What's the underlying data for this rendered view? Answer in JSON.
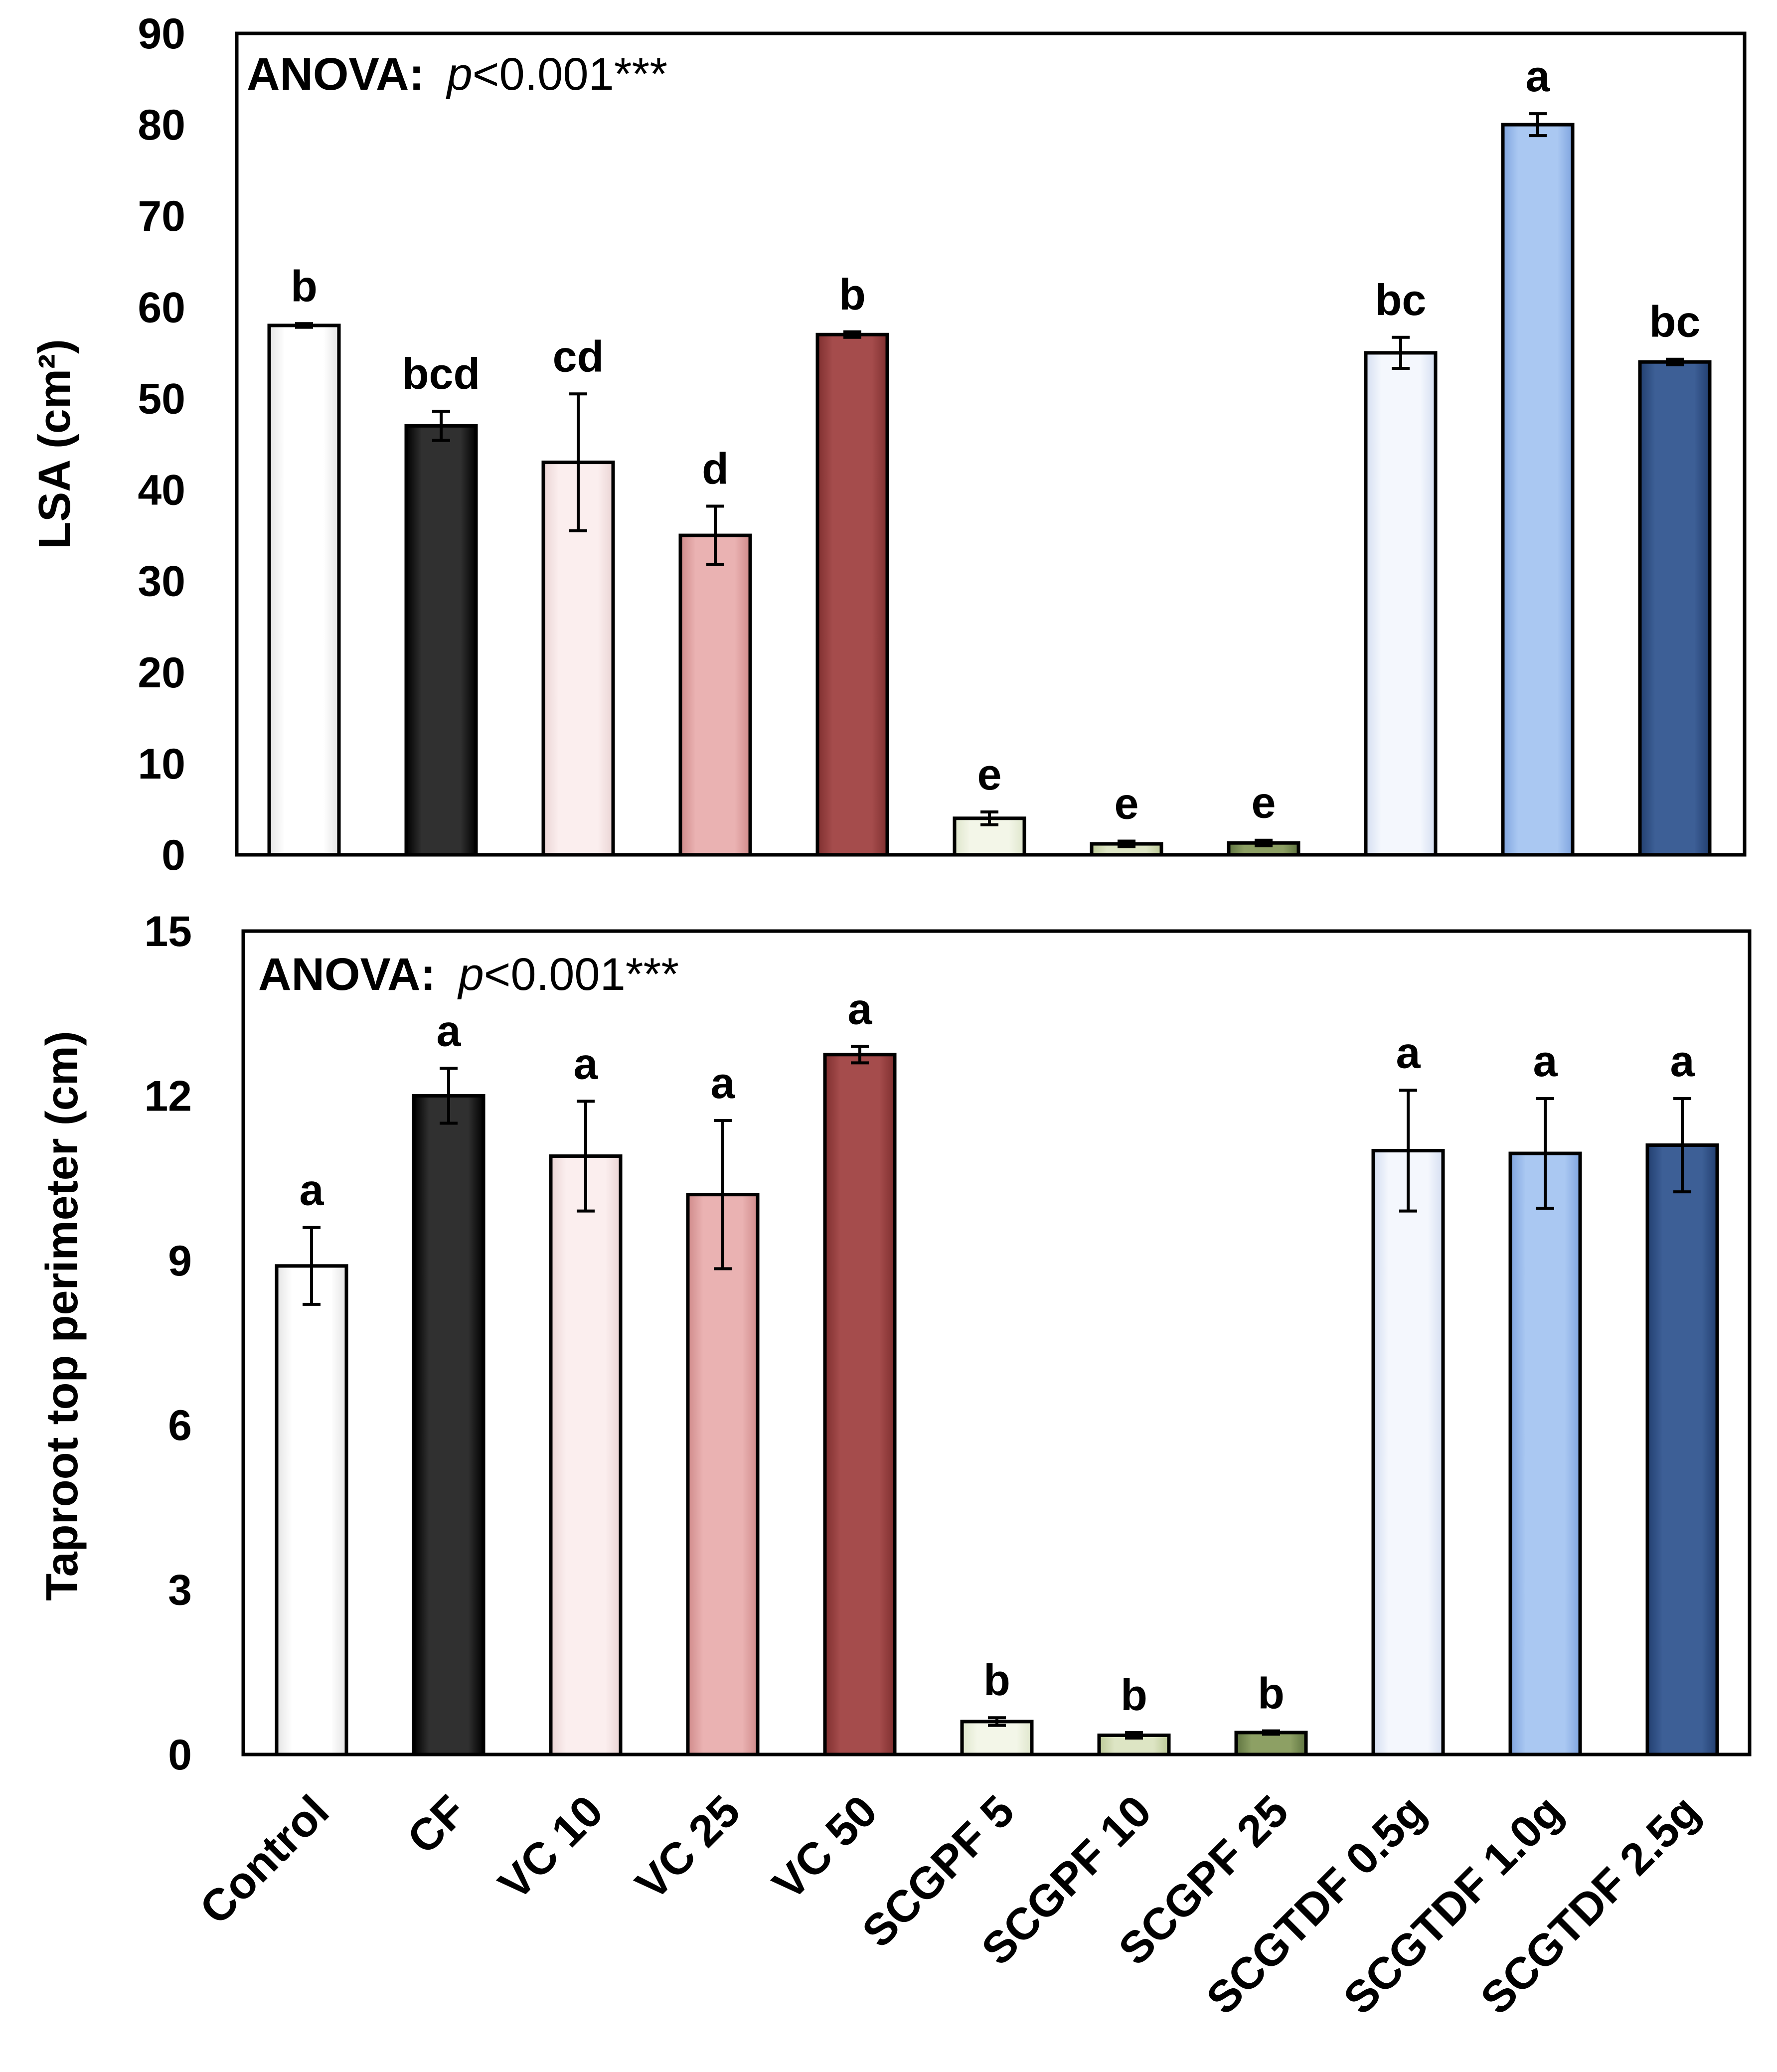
{
  "chart_data": [
    {
      "type": "bar",
      "categories": [
        "Control",
        "CF",
        "VC 10",
        "VC 25",
        "VC 50",
        "SCGPF 5",
        "SCGPF 10",
        "SCGPF 25",
        "SCGTDF 0.5g",
        "SCGTDF 1.0g",
        "SCGTDF 2.5g"
      ],
      "values": [
        58,
        47,
        43,
        35,
        57,
        4,
        1.2,
        1.3,
        55,
        80,
        54
      ],
      "errors": [
        0.2,
        1.6,
        7.5,
        3.2,
        0.3,
        0.7,
        0.3,
        0.3,
        1.7,
        1.2,
        0.3
      ],
      "letters": [
        "b",
        "bcd",
        "cd",
        "d",
        "b",
        "e",
        "e",
        "e",
        "bc",
        "a",
        "bc"
      ],
      "ylabel": "LSA (cm²)",
      "ylim": [
        0,
        90
      ],
      "yticks": [
        "0",
        "10",
        "20",
        "30",
        "40",
        "50",
        "60",
        "70",
        "80",
        "90"
      ],
      "annotation": {
        "label": "ANOVA:",
        "p": "p",
        "rest": "<0.001***"
      }
    },
    {
      "type": "bar",
      "categories": [
        "Control",
        "CF",
        "VC 10",
        "VC 25",
        "VC 50",
        "SCGPF 5",
        "SCGPF 10",
        "SCGPF 25",
        "SCGTDF 0.5g",
        "SCGTDF 1.0g",
        "SCGTDF 2.5g"
      ],
      "values": [
        8.9,
        12.0,
        10.9,
        10.2,
        12.75,
        0.6,
        0.35,
        0.4,
        11.0,
        10.95,
        11.1
      ],
      "errors": [
        0.7,
        0.5,
        1.0,
        1.35,
        0.15,
        0.07,
        0.05,
        0.03,
        1.1,
        1.0,
        0.85
      ],
      "letters": [
        "a",
        "a",
        "a",
        "a",
        "a",
        "b",
        "b",
        "b",
        "a",
        "a",
        "a"
      ],
      "ylabel": "Taproot top perimeter (cm)",
      "ylim": [
        0,
        15
      ],
      "yticks": [
        "0",
        "3",
        "6",
        "9",
        "12",
        "15"
      ],
      "annotation": {
        "label": "ANOVA:",
        "p": "p",
        "rest": "<0.001***"
      }
    }
  ],
  "series_colors": [
    {
      "light": "#ffffff",
      "dark": "#e4e4e4"
    },
    {
      "light": "#303030",
      "dark": "#000000"
    },
    {
      "light": "#fbeeee",
      "dark": "#ead4d4"
    },
    {
      "light": "#eab2b2",
      "dark": "#cf8a8a"
    },
    {
      "light": "#a54c4c",
      "dark": "#7f2f2f"
    },
    {
      "light": "#f3f6e8",
      "dark": "#dfe6cc"
    },
    {
      "light": "#dde5c4",
      "dark": "#bcc996"
    },
    {
      "light": "#8da064",
      "dark": "#5f7440"
    },
    {
      "light": "#f4f7fd",
      "dark": "#d4def1"
    },
    {
      "light": "#aac8f2",
      "dark": "#7fa4df"
    },
    {
      "light": "#3d5f96",
      "dark": "#223f70"
    }
  ]
}
